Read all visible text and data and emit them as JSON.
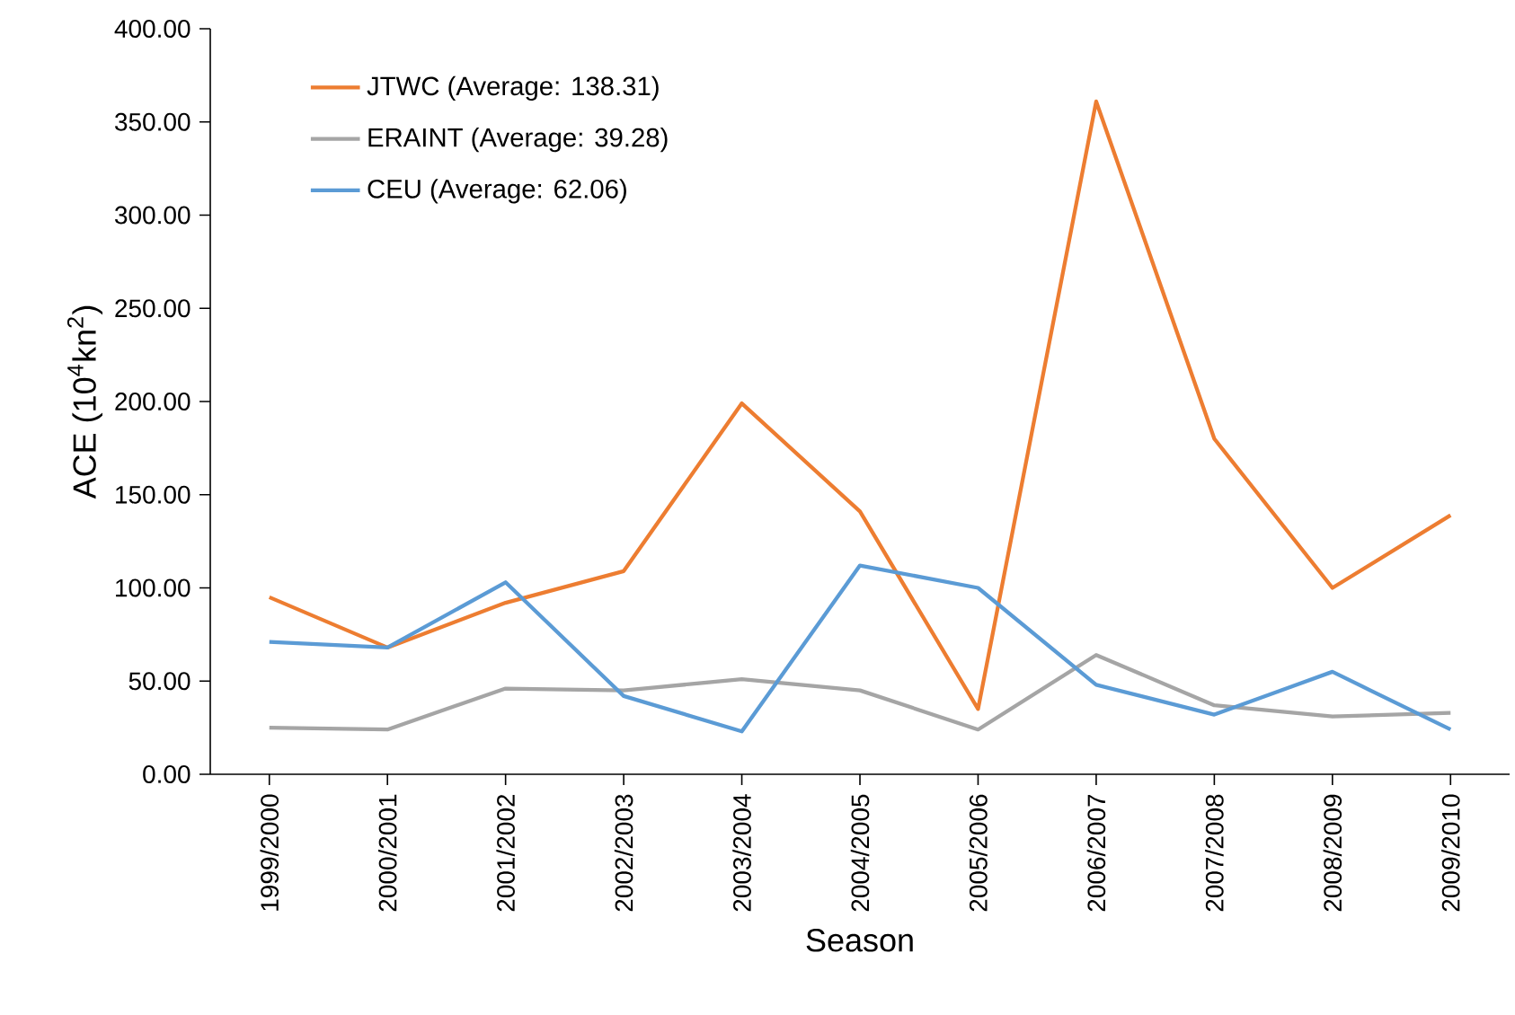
{
  "chart_data": {
    "type": "line",
    "xlabel": "Season",
    "ylabel": "ACE (10$^{4}$kn$^{2}$)",
    "categories": [
      "1999/2000",
      "2000/2001",
      "2001/2002",
      "2002/2003",
      "2003/2004",
      "2004/2005",
      "2005/2006",
      "2006/2007",
      "2007/2008",
      "2008/2009",
      "2009/2010"
    ],
    "series": [
      {
        "name": "JTWC (Average: 138.31)",
        "color": "#ed7d31",
        "values": [
          95,
          68,
          92,
          109,
          199,
          141,
          35,
          361,
          180,
          100,
          139
        ]
      },
      {
        "name": "ERAINT (Average: 39.28)",
        "color": "#a5a5a5",
        "values": [
          25,
          24,
          46,
          45,
          51,
          45,
          24,
          64,
          37,
          31,
          33
        ]
      },
      {
        "name": "CEU (Average: 62.06)",
        "color": "#5b9bd5",
        "values": [
          71,
          68,
          103,
          42,
          23,
          112,
          100,
          48,
          32,
          55,
          24
        ]
      }
    ],
    "ylim": [
      0,
      400
    ],
    "yticks": [
      {
        "value": 0,
        "label": "0.00"
      },
      {
        "value": 50,
        "label": "50.00"
      },
      {
        "value": 100,
        "label": "100.00"
      },
      {
        "value": 150,
        "label": "150.00"
      },
      {
        "value": 200,
        "label": "200.00"
      },
      {
        "value": 250,
        "label": "250.00"
      },
      {
        "value": 300,
        "label": "300.00"
      },
      {
        "value": 350,
        "label": "350.00"
      },
      {
        "value": 400,
        "label": "400.00"
      }
    ],
    "grid": false,
    "legend": "top left",
    "marker": "none",
    "line_style": "solid"
  }
}
